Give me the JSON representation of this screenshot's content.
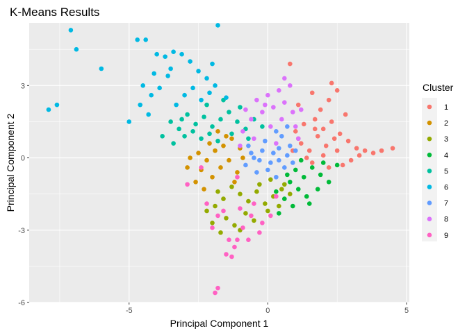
{
  "chart_data": {
    "type": "scatter",
    "title": "K-Means Results",
    "xlabel": "Principal Component 1",
    "ylabel": "Principal Component 2",
    "xlim": [
      -8.6,
      5.1
    ],
    "ylim": [
      -6.0,
      5.6
    ],
    "x_ticks": [
      -5,
      0,
      5
    ],
    "x_tick_labels": [
      "-5",
      "0",
      "5"
    ],
    "y_ticks": [
      -6,
      -3,
      0,
      3
    ],
    "y_tick_labels": [
      "-6",
      "-3",
      "0",
      "3"
    ],
    "grid": true,
    "legend": {
      "title": "Cluster",
      "position": "right"
    },
    "series": [
      {
        "name": "1",
        "color": "#F8766D",
        "points": [
          [
            1.2,
            0.6
          ],
          [
            1.5,
            0.3
          ],
          [
            1.8,
            0.9
          ],
          [
            2.1,
            0.5
          ],
          [
            2.4,
            0.8
          ],
          [
            1.0,
            1.1
          ],
          [
            1.3,
            1.4
          ],
          [
            1.7,
            1.6
          ],
          [
            2.0,
            1.2
          ],
          [
            2.3,
            1.5
          ],
          [
            2.6,
            1.0
          ],
          [
            2.9,
            0.7
          ],
          [
            3.2,
            0.4
          ],
          [
            3.5,
            0.3
          ],
          [
            3.8,
            0.2
          ],
          [
            4.1,
            0.3
          ],
          [
            4.5,
            0.4
          ],
          [
            3.0,
            -0.1
          ],
          [
            2.7,
            -0.3
          ],
          [
            2.2,
            -0.4
          ],
          [
            1.9,
            2.0
          ],
          [
            2.2,
            2.4
          ],
          [
            2.5,
            2.8
          ],
          [
            2.3,
            3.1
          ],
          [
            1.6,
            2.7
          ],
          [
            0.8,
            3.9
          ],
          [
            1.1,
            2.2
          ],
          [
            1.4,
            0.0
          ],
          [
            0.9,
            0.3
          ],
          [
            2.8,
            1.8
          ],
          [
            1.6,
            -0.2
          ],
          [
            2.0,
            0.1
          ],
          [
            2.5,
            0.3
          ],
          [
            1.1,
            0.8
          ],
          [
            3.3,
            0.1
          ],
          [
            1.7,
            1.2
          ]
        ]
      },
      {
        "name": "2",
        "color": "#D39200",
        "points": [
          [
            -2.5,
            0.2
          ],
          [
            -2.2,
            -0.1
          ],
          [
            -1.9,
            0.3
          ],
          [
            -1.6,
            0.5
          ],
          [
            -1.3,
            0.8
          ],
          [
            -1.0,
            0.4
          ],
          [
            -2.8,
            0.0
          ],
          [
            -2.4,
            -0.5
          ],
          [
            -2.0,
            -0.8
          ],
          [
            -1.7,
            -0.4
          ],
          [
            -1.4,
            -0.1
          ],
          [
            -1.1,
            -0.6
          ],
          [
            -2.6,
            -1.0
          ],
          [
            -2.3,
            -1.3
          ],
          [
            -1.5,
            0.9
          ],
          [
            -1.8,
            1.1
          ],
          [
            -2.1,
            0.6
          ],
          [
            -0.9,
            0.0
          ],
          [
            -2.9,
            -0.4
          ],
          [
            -1.2,
            -1.0
          ]
        ]
      },
      {
        "name": "3",
        "color": "#93AA00",
        "points": [
          [
            -1.0,
            -1.5
          ],
          [
            -0.7,
            -1.8
          ],
          [
            -0.4,
            -1.4
          ],
          [
            -0.1,
            -1.9
          ],
          [
            0.2,
            -1.6
          ],
          [
            0.5,
            -1.3
          ],
          [
            -1.3,
            -1.2
          ],
          [
            -1.6,
            -1.7
          ],
          [
            -1.9,
            -2.0
          ],
          [
            -2.2,
            -2.2
          ],
          [
            -1.5,
            -2.5
          ],
          [
            -1.2,
            -2.8
          ],
          [
            -0.8,
            -2.3
          ],
          [
            -0.5,
            -2.6
          ],
          [
            0.0,
            -2.2
          ],
          [
            0.4,
            -2.0
          ],
          [
            0.8,
            -1.5
          ],
          [
            -2.0,
            -2.7
          ],
          [
            -1.7,
            -3.1
          ],
          [
            -1.0,
            -3.0
          ],
          [
            -0.3,
            -1.1
          ],
          [
            0.1,
            -0.9
          ],
          [
            -1.8,
            -1.4
          ],
          [
            0.6,
            -1.1
          ]
        ]
      },
      {
        "name": "4",
        "color": "#00BA38",
        "points": [
          [
            1.0,
            -0.5
          ],
          [
            1.3,
            -0.8
          ],
          [
            1.6,
            -0.4
          ],
          [
            1.9,
            -0.7
          ],
          [
            2.2,
            -1.0
          ],
          [
            0.8,
            -1.0
          ],
          [
            1.1,
            -1.3
          ],
          [
            1.4,
            -1.6
          ],
          [
            0.6,
            -1.7
          ],
          [
            0.9,
            -2.0
          ],
          [
            2.5,
            -0.3
          ],
          [
            1.2,
            -0.1
          ],
          [
            0.3,
            -1.4
          ],
          [
            0.7,
            -0.7
          ],
          [
            1.8,
            -1.3
          ],
          [
            1.5,
            -1.9
          ],
          [
            0.4,
            -2.3
          ],
          [
            2.0,
            -0.2
          ]
        ]
      },
      {
        "name": "5",
        "color": "#00C19F",
        "points": [
          [
            -3.5,
            1.5
          ],
          [
            -3.2,
            1.2
          ],
          [
            -2.9,
            1.8
          ],
          [
            -2.6,
            1.4
          ],
          [
            -2.3,
            1.7
          ],
          [
            -2.0,
            1.3
          ],
          [
            -1.7,
            1.6
          ],
          [
            -1.4,
            1.9
          ],
          [
            -1.1,
            1.5
          ],
          [
            -0.8,
            1.2
          ],
          [
            -3.8,
            0.9
          ],
          [
            -3.4,
            0.6
          ],
          [
            -3.0,
            0.9
          ],
          [
            -2.7,
            1.1
          ],
          [
            -2.4,
            0.8
          ],
          [
            -2.1,
            1.0
          ],
          [
            -1.8,
            0.7
          ],
          [
            -0.5,
            1.6
          ],
          [
            -0.2,
            1.3
          ],
          [
            -1.0,
            2.1
          ],
          [
            -1.6,
            2.4
          ],
          [
            -2.2,
            2.2
          ],
          [
            -0.7,
            0.8
          ],
          [
            -1.3,
            1.0
          ],
          [
            -3.1,
            1.6
          ]
        ]
      },
      {
        "name": "6",
        "color": "#00B9E3",
        "points": [
          [
            -7.9,
            2.0
          ],
          [
            -7.6,
            2.2
          ],
          [
            -7.1,
            5.3
          ],
          [
            -6.9,
            4.5
          ],
          [
            -6.0,
            3.7
          ],
          [
            -5.0,
            1.5
          ],
          [
            -4.7,
            4.9
          ],
          [
            -4.4,
            4.9
          ],
          [
            -4.0,
            4.3
          ],
          [
            -3.7,
            4.2
          ],
          [
            -3.4,
            4.4
          ],
          [
            -3.1,
            4.3
          ],
          [
            -2.8,
            4.0
          ],
          [
            -2.5,
            3.6
          ],
          [
            -2.2,
            3.3
          ],
          [
            -1.9,
            3.0
          ],
          [
            -1.8,
            5.5
          ],
          [
            -4.5,
            3.0
          ],
          [
            -4.2,
            2.6
          ],
          [
            -3.9,
            2.9
          ],
          [
            -3.6,
            3.4
          ],
          [
            -3.3,
            2.2
          ],
          [
            -3.0,
            2.6
          ],
          [
            -2.7,
            2.9
          ],
          [
            -2.4,
            2.4
          ],
          [
            -2.1,
            2.7
          ],
          [
            -4.6,
            2.2
          ],
          [
            -4.3,
            1.8
          ],
          [
            -2.0,
            3.9
          ],
          [
            -1.5,
            2.5
          ],
          [
            -3.5,
            3.7
          ],
          [
            -4.1,
            3.5
          ]
        ]
      },
      {
        "name": "7",
        "color": "#619CFF",
        "points": [
          [
            -0.5,
            0.0
          ],
          [
            -0.2,
            0.3
          ],
          [
            0.1,
            -0.2
          ],
          [
            0.4,
            0.4
          ],
          [
            0.7,
            0.1
          ],
          [
            -0.8,
            -0.3
          ],
          [
            -0.4,
            -0.6
          ],
          [
            0.0,
            -0.5
          ],
          [
            0.3,
            -0.8
          ],
          [
            0.6,
            -0.4
          ],
          [
            0.9,
            -0.2
          ],
          [
            -0.7,
            0.5
          ],
          [
            -0.1,
            0.7
          ],
          [
            0.5,
            0.9
          ],
          [
            0.8,
            0.5
          ],
          [
            0.2,
            0.2
          ],
          [
            -0.3,
            -0.1
          ],
          [
            1.0,
            0.3
          ],
          [
            0.4,
            -0.1
          ],
          [
            -0.6,
            0.2
          ],
          [
            0.7,
            1.3
          ],
          [
            0.3,
            1.1
          ]
        ]
      },
      {
        "name": "8",
        "color": "#DB72FB",
        "points": [
          [
            -0.6,
            1.6
          ],
          [
            -0.2,
            1.9
          ],
          [
            0.2,
            2.1
          ],
          [
            0.6,
            2.3
          ],
          [
            -0.4,
            2.4
          ],
          [
            0.0,
            2.6
          ],
          [
            0.4,
            2.8
          ],
          [
            0.8,
            3.0
          ],
          [
            0.5,
            1.6
          ],
          [
            0.9,
            1.9
          ],
          [
            -0.9,
            1.1
          ],
          [
            -0.5,
            0.8
          ],
          [
            0.1,
            1.3
          ],
          [
            1.2,
            2.0
          ],
          [
            -0.1,
            2.2
          ],
          [
            0.3,
            0.6
          ],
          [
            1.0,
            1.3
          ],
          [
            -0.8,
            2.0
          ],
          [
            0.6,
            3.3
          ],
          [
            1.1,
            0.8
          ],
          [
            -1.0,
            0.5
          ]
        ]
      },
      {
        "name": "9",
        "color": "#FF61C3",
        "points": [
          [
            -2.9,
            -1.1
          ],
          [
            -2.4,
            -0.4
          ],
          [
            -1.8,
            -2.4
          ],
          [
            -1.4,
            -3.4
          ],
          [
            -1.2,
            -3.7
          ],
          [
            -1.5,
            -4.0
          ],
          [
            -1.3,
            -4.1
          ],
          [
            -1.1,
            -3.4
          ],
          [
            -1.8,
            -5.4
          ],
          [
            -1.9,
            -5.6
          ],
          [
            -0.9,
            -2.9
          ],
          [
            -0.6,
            -2.4
          ],
          [
            -0.3,
            -3.1
          ],
          [
            -0.2,
            -2.7
          ],
          [
            0.1,
            -2.4
          ],
          [
            -0.5,
            -1.9
          ],
          [
            -1.0,
            -2.1
          ],
          [
            -2.0,
            -2.9
          ],
          [
            -1.6,
            -2.2
          ],
          [
            -1.1,
            -0.8
          ],
          [
            0.3,
            -1.6
          ],
          [
            -0.7,
            -3.4
          ],
          [
            -2.2,
            -1.9
          ]
        ]
      }
    ]
  }
}
